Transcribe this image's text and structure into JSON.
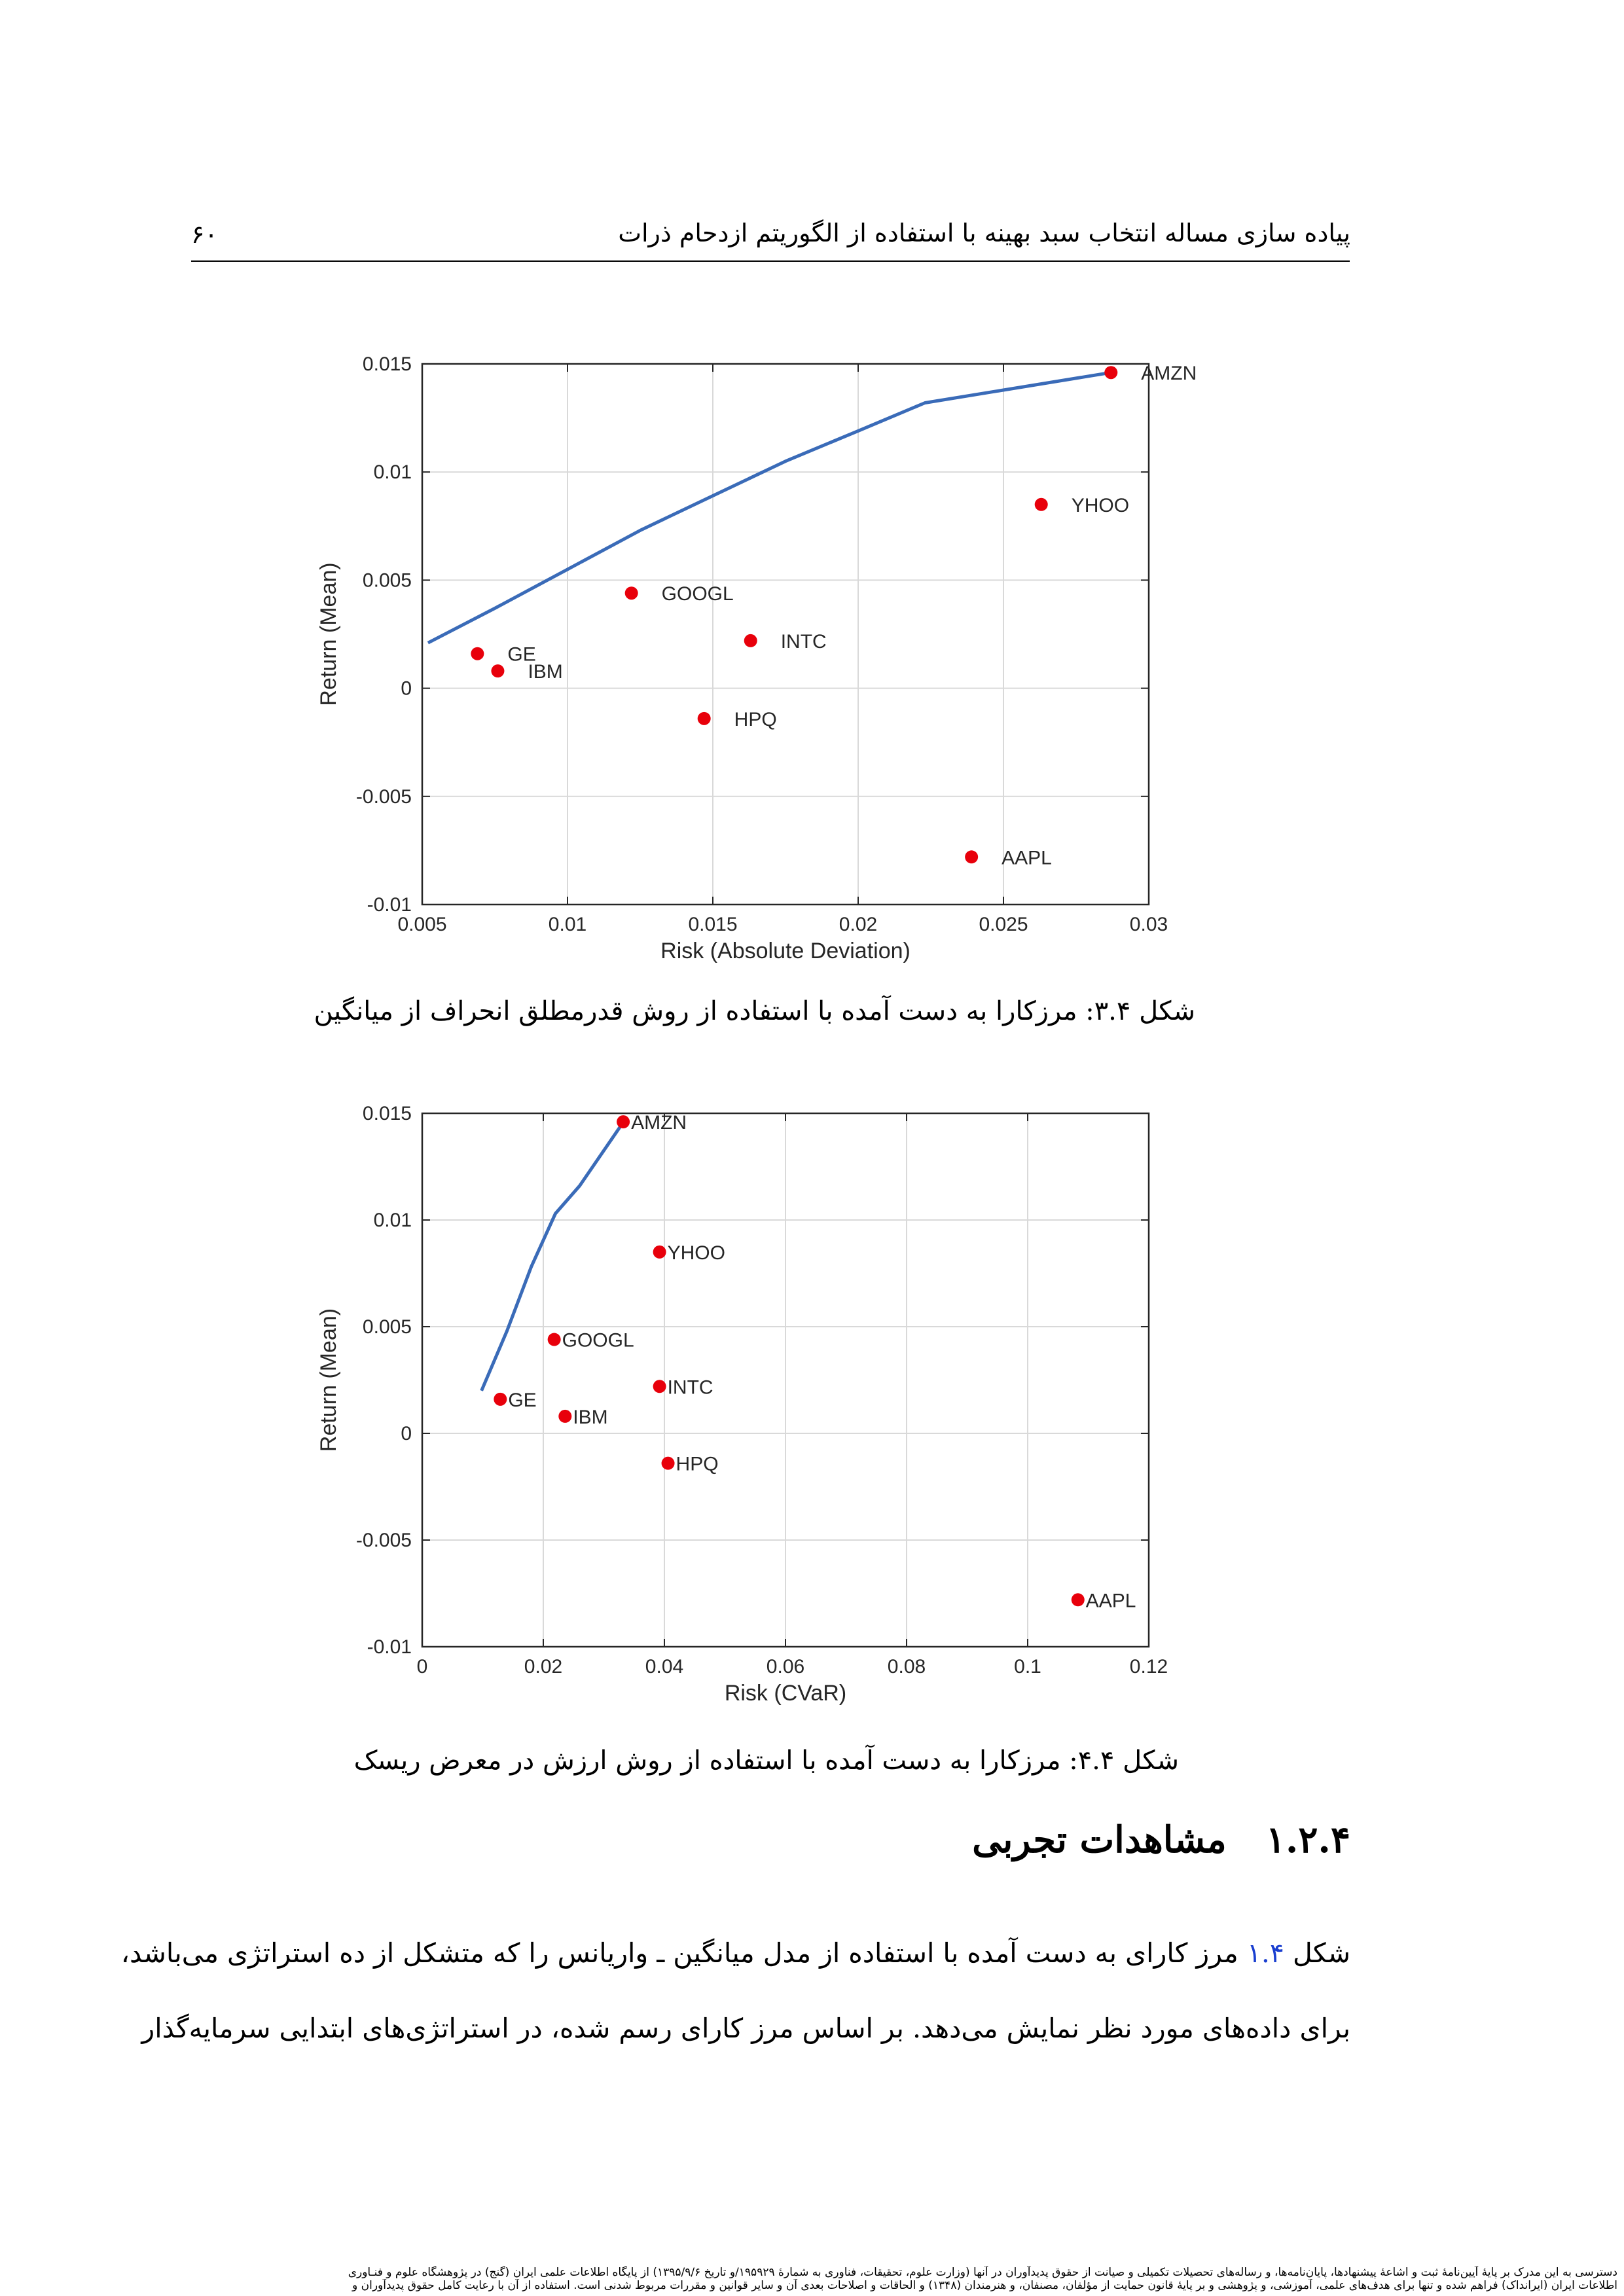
{
  "header": {
    "page_number": "۶۰",
    "running_title": "پیاده سازی مساله انتخاب سبد بهینه با استفاده از الگوریتم ازدحام ذرات"
  },
  "colors": {
    "frontier": "#3a6bb8",
    "point": "#e8000b",
    "grid": "#d9d9d9"
  },
  "chart_data": [
    {
      "type": "scatter",
      "xlabel": "Risk (Absolute Deviation)",
      "ylabel": "Return (Mean)",
      "xlim": [
        0.005,
        0.03
      ],
      "ylim": [
        -0.01,
        0.015
      ],
      "xticks": [
        0.005,
        0.01,
        0.015,
        0.02,
        0.025,
        0.03
      ],
      "xtick_labels": [
        "0.005",
        "0.01",
        "0.015",
        "0.02",
        "0.025",
        "0.03"
      ],
      "yticks": [
        -0.01,
        -0.005,
        0,
        0.005,
        0.01,
        0.015
      ],
      "ytick_labels": [
        "-0.01",
        "-0.005",
        "0",
        "0.005",
        "0.01",
        "0.015"
      ],
      "grid": true,
      "frontier": [
        [
          0.0052,
          0.0021
        ],
        [
          0.0075,
          0.0037
        ],
        [
          0.01,
          0.0055
        ],
        [
          0.0125,
          0.0073
        ],
        [
          0.015,
          0.0089
        ],
        [
          0.0175,
          0.0105
        ],
        [
          0.02,
          0.0119
        ],
        [
          0.0223,
          0.0132
        ],
        [
          0.0287,
          0.0146
        ]
      ],
      "points": [
        {
          "label": "AMZN",
          "x": 0.0287,
          "y": 0.0146
        },
        {
          "label": "YHOO",
          "x": 0.0263,
          "y": 0.0085
        },
        {
          "label": "GOOGL",
          "x": 0.0122,
          "y": 0.0044
        },
        {
          "label": "INTC",
          "x": 0.0163,
          "y": 0.0022
        },
        {
          "label": "GE",
          "x": 0.0069,
          "y": 0.0016
        },
        {
          "label": "IBM",
          "x": 0.0076,
          "y": 0.0008
        },
        {
          "label": "HPQ",
          "x": 0.0147,
          "y": -0.0014
        },
        {
          "label": "AAPL",
          "x": 0.0239,
          "y": -0.0078
        }
      ]
    },
    {
      "type": "scatter",
      "xlabel": "Risk (CVaR)",
      "ylabel": "Return (Mean)",
      "xlim": [
        0,
        0.12
      ],
      "ylim": [
        -0.01,
        0.015
      ],
      "xticks": [
        0,
        0.02,
        0.04,
        0.06,
        0.08,
        0.1,
        0.12
      ],
      "xtick_labels": [
        "0",
        "0.02",
        "0.04",
        "0.06",
        "0.08",
        "0.1",
        "0.12"
      ],
      "yticks": [
        -0.01,
        -0.005,
        0,
        0.005,
        0.01,
        0.015
      ],
      "ytick_labels": [
        "-0.01",
        "-0.005",
        "0",
        "0.005",
        "0.01",
        "0.015"
      ],
      "grid": true,
      "frontier": [
        [
          0.0098,
          0.002
        ],
        [
          0.014,
          0.0048
        ],
        [
          0.018,
          0.0078
        ],
        [
          0.022,
          0.0103
        ],
        [
          0.026,
          0.0116
        ],
        [
          0.033,
          0.0145
        ]
      ],
      "points": [
        {
          "label": "AMZN",
          "x": 0.0332,
          "y": 0.0146
        },
        {
          "label": "YHOO",
          "x": 0.0392,
          "y": 0.0085
        },
        {
          "label": "GOOGL",
          "x": 0.0218,
          "y": 0.0044
        },
        {
          "label": "INTC",
          "x": 0.0392,
          "y": 0.0022
        },
        {
          "label": "GE",
          "x": 0.0129,
          "y": 0.0016
        },
        {
          "label": "IBM",
          "x": 0.0236,
          "y": 0.0008
        },
        {
          "label": "HPQ",
          "x": 0.0406,
          "y": -0.0014
        },
        {
          "label": "AAPL",
          "x": 0.1083,
          "y": -0.0078
        }
      ]
    }
  ],
  "captions": [
    "شکل ۳.۴: مرزکارا به دست آمده با استفاده از روش قدرمطلق انحراف از میانگین",
    "شکل ۴.۴: مرزکارا به دست آمده با استفاده از روش ارزش در معرض ریسک"
  ],
  "section": {
    "number": "۱.۲.۴",
    "title": "مشاهدات تجربی"
  },
  "body": {
    "line1_prefix": "شکل",
    "line1_ref": "۱.۴",
    "line1_rest": "مرز کارای به دست آمده با استفاده از مدل میانگین ـ واریانس را که متشکل از ده استراتژی می‌باشد،",
    "line2": "برای داده‌های مورد نظر نمایش می‌دهد. بر اساس مرز کارای رسم شده، در استراتژی‌های ابتدایی سرمایه‌گذار"
  },
  "footer": {
    "line1": "دسترسی به این مدرک بر پایهٔ آیین‌نامهٔ ثبت و اشاعهٔ پیشنهادها، پایان‌نامه‌ها، و رساله‌های تحصیلات تکمیلی و صیانت از حقوق پدیدآوران در آنها (وزارت علوم، تحقیقات، فناوری به شمارهٔ ۱۹۵۹۲۹/و تاریخ ۱۳۹۵/۹/۶) از پایگاه اطلاعات علمی ایران (گنج) در پژوهشگاه علوم و فنـاوری",
    "line2": "اطلاعات ایران (ایرانداک) فراهم شده و تنها برای هدف‌های علمی، آموزشی، و پژوهشی و بر پایهٔ قانون حمایت از مؤلفان، مصنفان، و هنرمندان (۱۳۴۸) و الحاقات و اصلاحات بعدی آن و سایر قوانین و مقررات مربوط شدنی است. استفاده از آن با رعایت کامل حقوق پدیدآوران و"
  }
}
